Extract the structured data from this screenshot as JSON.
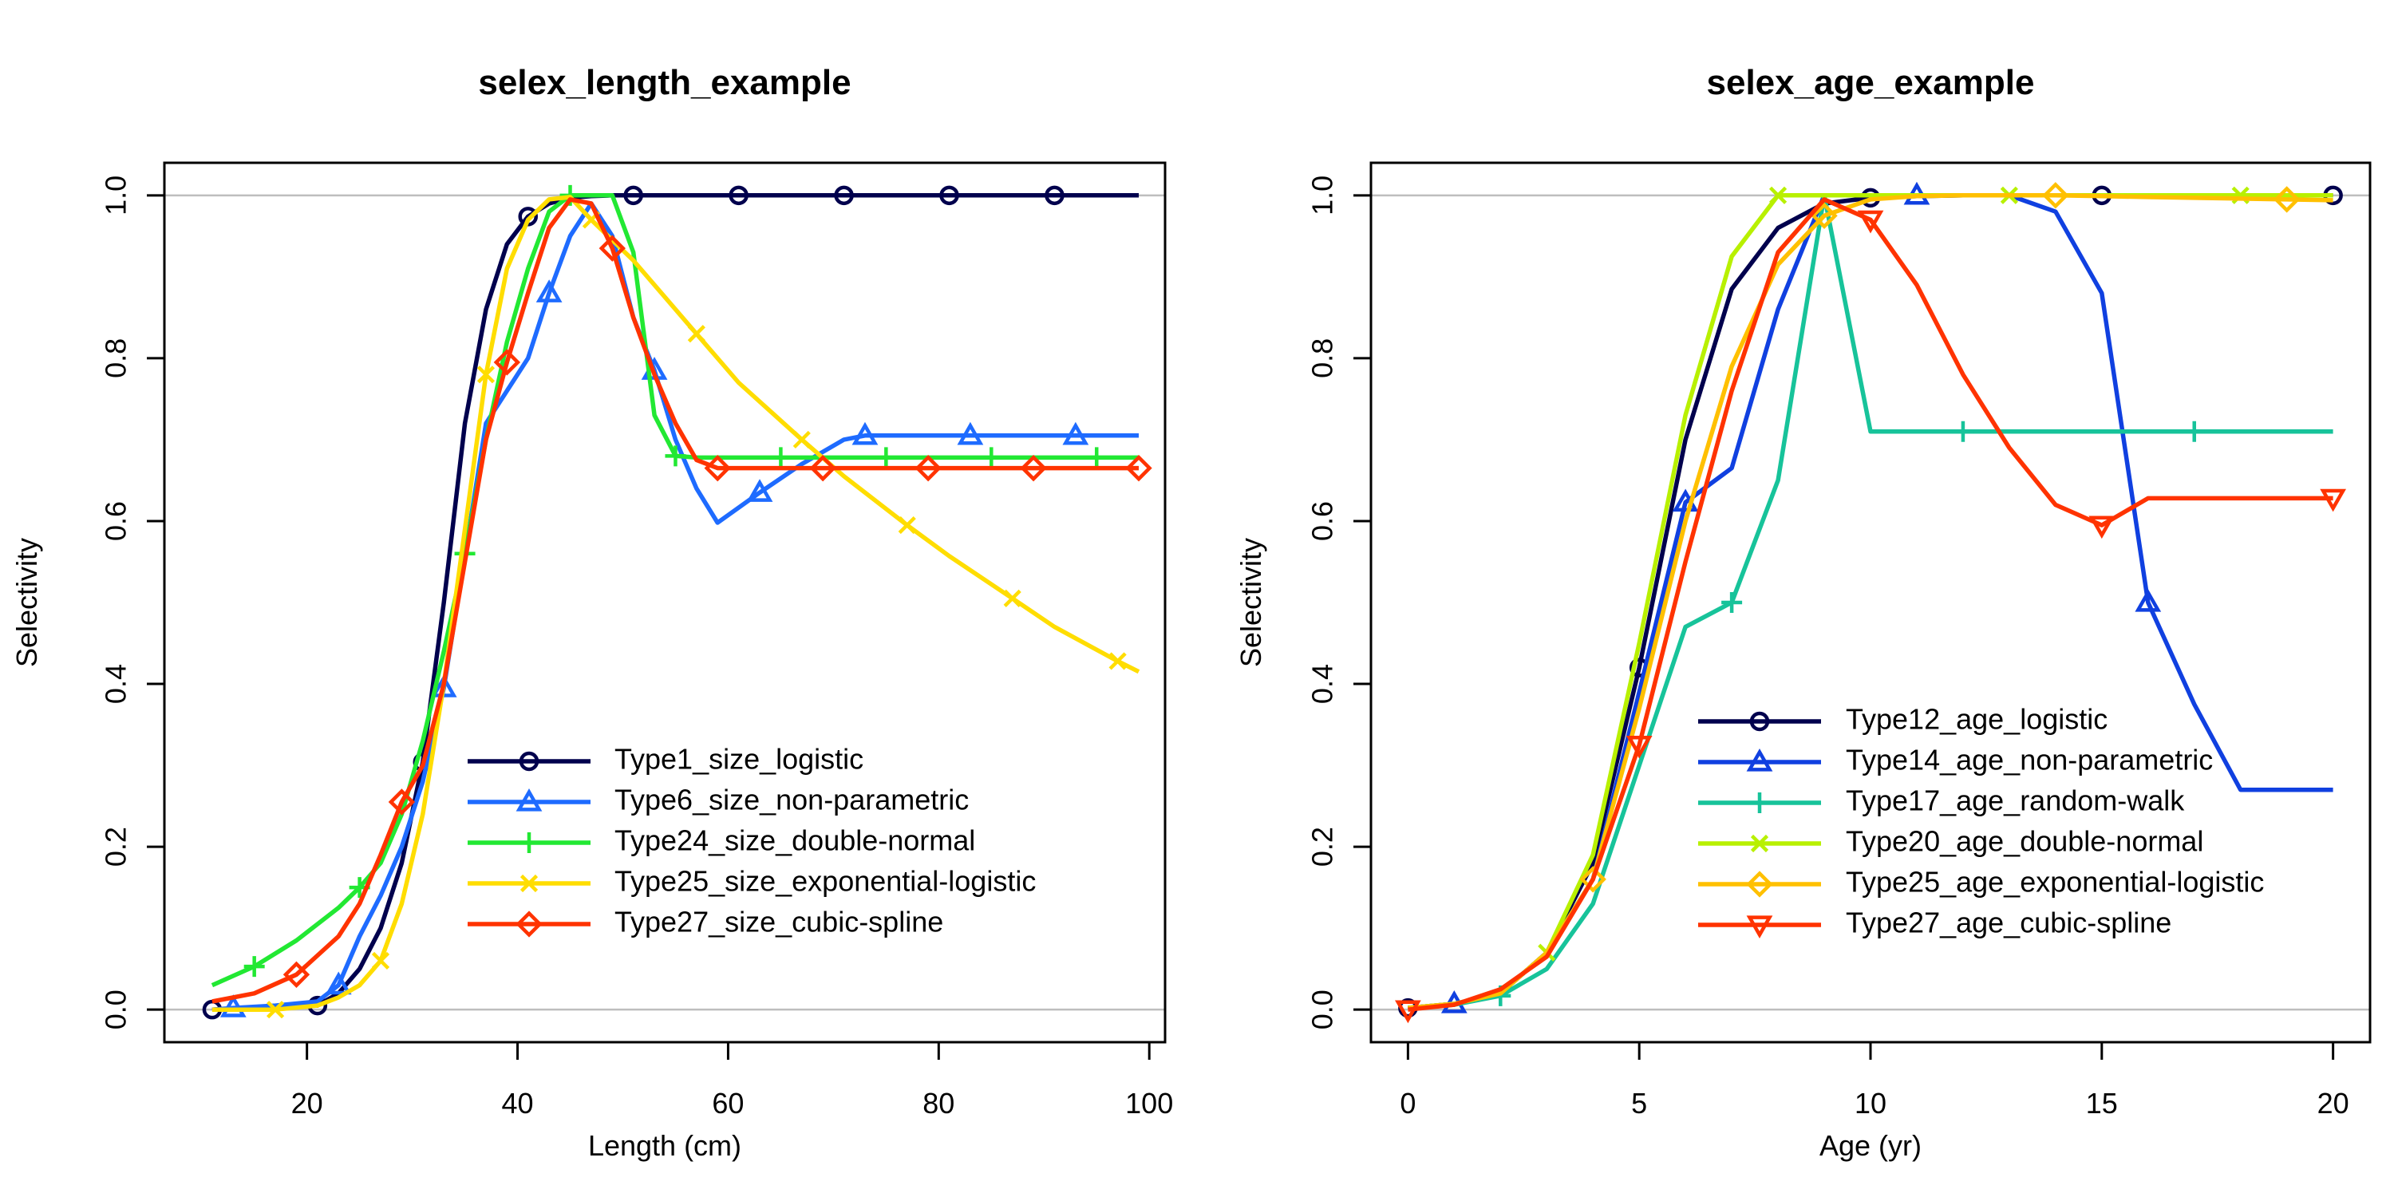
{
  "chart_data": [
    {
      "type": "line",
      "title": "selex_length_example",
      "xlabel": "Length (cm)",
      "ylabel": "Selectivity",
      "xlim": [
        10,
        100
      ],
      "ylim": [
        0,
        1
      ],
      "xticks": [
        "20",
        "40",
        "60",
        "80",
        "100"
      ],
      "yticks": [
        "0.0",
        "0.2",
        "0.4",
        "0.6",
        "0.8",
        "1.0"
      ],
      "reference_lines_y": [
        0,
        1
      ],
      "legend_position": "bottom-right",
      "series": [
        {
          "name": "Type1_size_logistic",
          "color": "#00004D",
          "marker": "circle",
          "x": [
            11,
            21,
            23,
            25,
            27,
            29,
            31,
            33,
            35,
            37,
            39,
            41,
            43,
            45,
            47,
            49,
            51,
            61,
            71,
            81,
            91,
            99
          ],
          "y": [
            0.0,
            0.005,
            0.02,
            0.05,
            0.1,
            0.18,
            0.304,
            0.5,
            0.72,
            0.86,
            0.94,
            0.974,
            0.99,
            0.997,
            0.999,
            1.0,
            1.0,
            1.0,
            1.0,
            1.0,
            1.0,
            1.0
          ],
          "marker_x": [
            11,
            21,
            31,
            41,
            51,
            61,
            71,
            81,
            91
          ]
        },
        {
          "name": "Type6_size_non-parametric",
          "color": "#1E6BFF",
          "marker": "triangle",
          "x": [
            11,
            13,
            17,
            21,
            23,
            25,
            27,
            29,
            31,
            33,
            37,
            39,
            41,
            43,
            45,
            47,
            49,
            51,
            53,
            55,
            57,
            59,
            63,
            67,
            71,
            73,
            83,
            93,
            99
          ],
          "y": [
            0.0,
            0.002,
            0.005,
            0.01,
            0.03,
            0.09,
            0.14,
            0.2,
            0.28,
            0.395,
            0.72,
            0.76,
            0.8,
            0.88,
            0.95,
            0.99,
            0.95,
            0.85,
            0.785,
            0.7,
            0.64,
            0.598,
            0.635,
            0.67,
            0.7,
            0.705,
            0.705,
            0.705,
            0.705
          ],
          "marker_x": [
            13,
            23,
            33,
            43,
            53,
            63,
            73,
            83,
            93
          ]
        },
        {
          "name": "Type24_size_double-normal",
          "color": "#22E833",
          "marker": "plus",
          "x": [
            11,
            15,
            19,
            23,
            25,
            27,
            29,
            31,
            33,
            35,
            37,
            39,
            41,
            43,
            45,
            47,
            49,
            51,
            53,
            55,
            57,
            65,
            75,
            85,
            95,
            99
          ],
          "y": [
            0.03,
            0.053,
            0.085,
            0.125,
            0.15,
            0.18,
            0.24,
            0.33,
            0.44,
            0.56,
            0.7,
            0.82,
            0.91,
            0.98,
            1.0,
            1.0,
            1.0,
            0.93,
            0.73,
            0.68,
            0.678,
            0.678,
            0.678,
            0.678,
            0.678,
            0.678
          ],
          "marker_x": [
            15,
            25,
            35,
            45,
            55,
            65,
            75,
            85,
            95
          ]
        },
        {
          "name": "Type25_size_exponential-logistic",
          "color": "#FFDD00",
          "marker": "cross",
          "x": [
            11,
            17,
            21,
            23,
            25,
            27,
            29,
            31,
            33,
            35,
            37,
            39,
            41,
            43,
            45,
            47,
            51,
            57,
            61,
            67,
            71,
            77,
            81,
            87,
            91,
            97,
            99
          ],
          "y": [
            0.0,
            0.0,
            0.005,
            0.015,
            0.03,
            0.06,
            0.13,
            0.24,
            0.4,
            0.59,
            0.78,
            0.91,
            0.97,
            0.995,
            0.998,
            0.97,
            0.92,
            0.83,
            0.77,
            0.7,
            0.655,
            0.595,
            0.557,
            0.505,
            0.47,
            0.428,
            0.415
          ],
          "marker_x": [
            17,
            27,
            37,
            47,
            57,
            67,
            77,
            87,
            97
          ]
        },
        {
          "name": "Type27_size_cubic-spline",
          "color": "#FF3300",
          "marker": "diamond",
          "x": [
            11,
            15,
            19,
            23,
            25,
            27,
            29,
            31,
            33,
            35,
            37,
            39,
            41,
            43,
            45,
            47,
            49,
            51,
            53,
            55,
            57,
            59,
            69,
            79,
            89,
            99
          ],
          "y": [
            0.01,
            0.02,
            0.043,
            0.09,
            0.13,
            0.19,
            0.255,
            0.3,
            0.4,
            0.55,
            0.7,
            0.795,
            0.88,
            0.96,
            0.995,
            0.99,
            0.935,
            0.85,
            0.78,
            0.72,
            0.675,
            0.665,
            0.665,
            0.665,
            0.665,
            0.665
          ],
          "marker_x": [
            19,
            29,
            39,
            49,
            59,
            69,
            79,
            89,
            99
          ]
        }
      ]
    },
    {
      "type": "line",
      "title": "selex_age_example",
      "xlabel": "Age (yr)",
      "ylabel": "Selectivity",
      "xlim": [
        0,
        20
      ],
      "ylim": [
        0,
        1
      ],
      "xticks": [
        "0",
        "5",
        "10",
        "15",
        "20"
      ],
      "yticks": [
        "0.0",
        "0.2",
        "0.4",
        "0.6",
        "0.8",
        "1.0"
      ],
      "reference_lines_y": [
        0,
        1
      ],
      "legend_position": "bottom-right",
      "series": [
        {
          "name": "Type12_age_logistic",
          "color": "#00004D",
          "marker": "circle",
          "x": [
            0,
            1,
            2,
            3,
            4,
            5,
            6,
            7,
            8,
            9,
            10,
            11,
            12,
            13,
            14,
            15,
            16,
            17,
            18,
            19,
            20
          ],
          "y": [
            0.002,
            0.007,
            0.02,
            0.07,
            0.18,
            0.42,
            0.7,
            0.885,
            0.96,
            0.99,
            0.997,
            0.999,
            1.0,
            1.0,
            1.0,
            1.0,
            1.0,
            1.0,
            1.0,
            1.0,
            1.0
          ],
          "marker_x": [
            0,
            5,
            10,
            15,
            20
          ]
        },
        {
          "name": "Type14_age_non-parametric",
          "color": "#1040E0",
          "marker": "triangle",
          "x": [
            0,
            1,
            2,
            3,
            4,
            5,
            6,
            7,
            8,
            9,
            10,
            11,
            12,
            13,
            14,
            15,
            16,
            17,
            18,
            19,
            20
          ],
          "y": [
            0.002,
            0.007,
            0.02,
            0.07,
            0.16,
            0.39,
            0.623,
            0.665,
            0.86,
            1.0,
            1.0,
            1.0,
            1.0,
            1.0,
            0.98,
            0.88,
            0.5,
            0.375,
            0.27,
            0.27,
            0.27
          ],
          "marker_x": [
            1,
            6,
            11,
            16
          ]
        },
        {
          "name": "Type17_age_random-walk",
          "color": "#17C39A",
          "marker": "plus",
          "x": [
            0,
            1,
            2,
            3,
            4,
            5,
            6,
            7,
            8,
            9,
            10,
            11,
            12,
            13,
            14,
            15,
            16,
            17,
            18,
            19,
            20
          ],
          "y": [
            0.002,
            0.006,
            0.017,
            0.05,
            0.13,
            0.3,
            0.47,
            0.5,
            0.65,
            1.0,
            0.71,
            0.71,
            0.71,
            0.71,
            0.71,
            0.71,
            0.71,
            0.71,
            0.71,
            0.71,
            0.71
          ],
          "marker_x": [
            2,
            7,
            12,
            17
          ]
        },
        {
          "name": "Type20_age_double-normal",
          "color": "#B8F000",
          "marker": "cross",
          "x": [
            0,
            1,
            2,
            3,
            4,
            5,
            6,
            7,
            8,
            9,
            10,
            11,
            12,
            13,
            14,
            15,
            16,
            17,
            18,
            19,
            20
          ],
          "y": [
            0.002,
            0.007,
            0.02,
            0.07,
            0.19,
            0.45,
            0.73,
            0.925,
            1.0,
            1.0,
            1.0,
            1.0,
            1.0,
            1.0,
            1.0,
            1.0,
            1.0,
            1.0,
            1.0,
            1.0,
            1.0
          ],
          "marker_x": [
            3,
            8,
            13,
            18
          ]
        },
        {
          "name": "Type25_age_exponential-logistic",
          "color": "#FFC000",
          "marker": "diamond",
          "x": [
            0,
            1,
            2,
            3,
            4,
            5,
            6,
            7,
            8,
            9,
            10,
            11,
            12,
            13,
            14,
            15,
            16,
            17,
            18,
            19,
            20
          ],
          "y": [
            0.002,
            0.007,
            0.02,
            0.07,
            0.16,
            0.37,
            0.6,
            0.79,
            0.915,
            0.975,
            0.995,
            0.999,
            1.0,
            1.0,
            1.0,
            0.999,
            0.998,
            0.997,
            0.996,
            0.995,
            0.994
          ],
          "marker_x": [
            4,
            9,
            14,
            19
          ]
        },
        {
          "name": "Type27_age_cubic-spline",
          "color": "#FF3300",
          "marker": "triangle-down",
          "x": [
            0,
            1,
            2,
            3,
            4,
            5,
            6,
            7,
            8,
            9,
            10,
            11,
            12,
            13,
            14,
            15,
            16,
            17,
            18,
            19,
            20
          ],
          "y": [
            0.0,
            0.006,
            0.025,
            0.065,
            0.16,
            0.325,
            0.55,
            0.76,
            0.93,
            0.995,
            0.97,
            0.89,
            0.78,
            0.69,
            0.62,
            0.595,
            0.628,
            0.628,
            0.628,
            0.628,
            0.628
          ],
          "marker_x": [
            0,
            5,
            10,
            15,
            20
          ]
        }
      ]
    }
  ]
}
